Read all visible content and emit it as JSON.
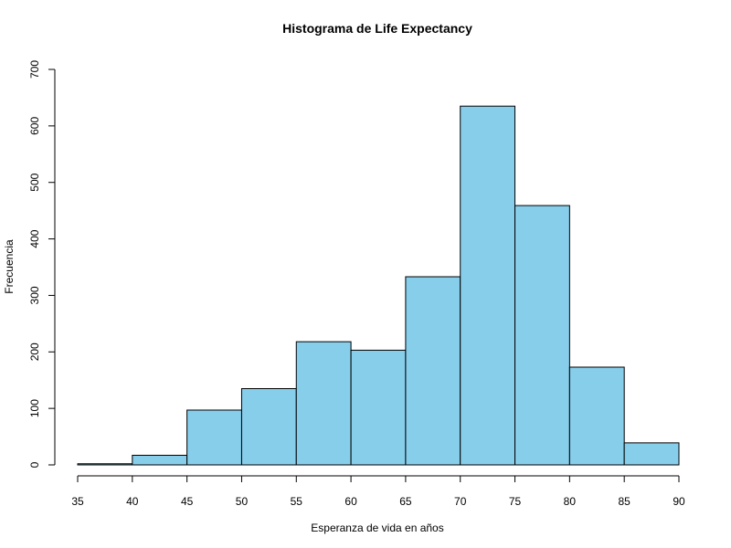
{
  "chart_data": {
    "type": "bar",
    "title": "Histograma de Life Expectancy",
    "xlabel": "Esperanza de vida en años",
    "ylabel": "Frecuencia",
    "bins": [
      {
        "from": 35,
        "to": 40,
        "count": 2
      },
      {
        "from": 40,
        "to": 45,
        "count": 17
      },
      {
        "from": 45,
        "to": 50,
        "count": 97
      },
      {
        "from": 50,
        "to": 55,
        "count": 135
      },
      {
        "from": 55,
        "to": 60,
        "count": 218
      },
      {
        "from": 60,
        "to": 65,
        "count": 203
      },
      {
        "from": 65,
        "to": 70,
        "count": 333
      },
      {
        "from": 70,
        "to": 75,
        "count": 635
      },
      {
        "from": 75,
        "to": 80,
        "count": 459
      },
      {
        "from": 80,
        "to": 85,
        "count": 173
      },
      {
        "from": 85,
        "to": 90,
        "count": 39
      }
    ],
    "xlim": [
      35,
      90
    ],
    "ylim": [
      0,
      700
    ],
    "x_ticks": [
      35,
      40,
      45,
      50,
      55,
      60,
      65,
      70,
      75,
      80,
      85,
      90
    ],
    "y_ticks": [
      0,
      100,
      200,
      300,
      400,
      500,
      600,
      700
    ],
    "bar_color": "#87CEEB",
    "bar_edge_color": "#000000",
    "grid": false,
    "legend": "none"
  }
}
